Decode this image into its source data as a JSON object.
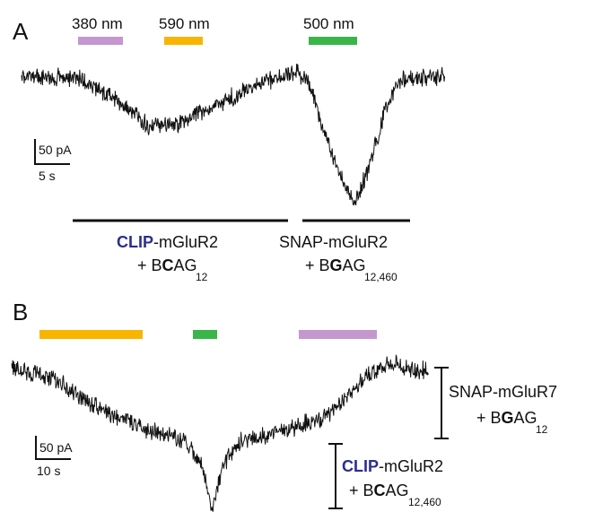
{
  "panel_a": {
    "letter": "A",
    "light_bars": [
      {
        "label": "380 nm",
        "color": "#c497cf"
      },
      {
        "label": "590 nm",
        "color": "#f7b500"
      },
      {
        "label": "500 nm",
        "color": "#3ab54a"
      }
    ],
    "scale_current": "50 pA",
    "scale_time": "5 s",
    "group_left": {
      "clip": "CLIP",
      "rest": "-mGluR2",
      "plus": "+ B",
      "bold": "C",
      "tail": "AG",
      "sub": "12"
    },
    "group_right": {
      "line1": "SNAP-mGluR2",
      "plus": "+ B",
      "bold": "G",
      "tail": "AG",
      "sub": "12,460"
    }
  },
  "panel_b": {
    "letter": "B",
    "light_bars": [
      {
        "label": "",
        "color": "#f7b500"
      },
      {
        "label": "",
        "color": "#3ab54a"
      },
      {
        "label": "",
        "color": "#c497cf"
      }
    ],
    "scale_current": "50 pA",
    "scale_time": "10 s",
    "group_top": {
      "line1": "SNAP-mGluR7",
      "plus": "+ B",
      "bold": "G",
      "tail": "AG",
      "sub": "12"
    },
    "group_bottom": {
      "clip": "CLIP",
      "rest": "-mGluR2",
      "plus": "+ B",
      "bold": "C",
      "tail": "AG",
      "sub": "12,460"
    }
  },
  "colors": {
    "trace": "#111111",
    "clip_text": "#2a2f8f"
  }
}
